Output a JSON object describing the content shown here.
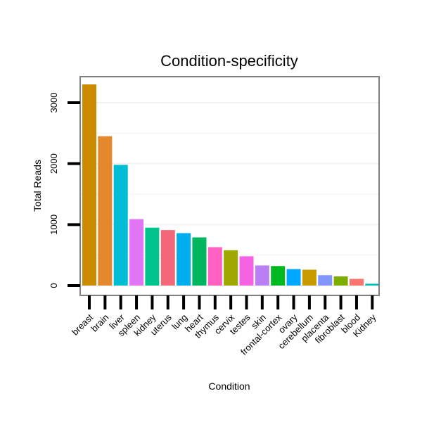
{
  "chart_data": {
    "type": "bar",
    "title": "Condition-specificity",
    "xlabel": "Condition",
    "ylabel": "Total Reads",
    "categories": [
      "breast",
      "brain",
      "liver",
      "spleen",
      "kidney",
      "uterus",
      "lung",
      "heart",
      "thymus",
      "cervix",
      "testes",
      "skin",
      "frontal-cortex",
      "ovary",
      "cerebellum",
      "placenta",
      "fibroblast",
      "blood",
      "Kidney"
    ],
    "values": [
      3300,
      2450,
      1980,
      1090,
      950,
      910,
      860,
      790,
      630,
      580,
      480,
      330,
      320,
      270,
      260,
      170,
      150,
      110,
      30
    ],
    "colors": [
      "#CC8A00",
      "#E5872B",
      "#00BCD4",
      "#E076F5",
      "#00C48C",
      "#F2677A",
      "#00ADEF",
      "#00B55F",
      "#FF61C3",
      "#9EA800",
      "#F563E3",
      "#BB7FF5",
      "#00B81F",
      "#00A9FF",
      "#C99A00",
      "#8395FF",
      "#7CAE00",
      "#F8766D",
      "#00C0AF"
    ],
    "yticks": [
      0,
      1000,
      2000,
      3000
    ],
    "ylim": [
      0,
      3450
    ],
    "grid": true,
    "legend": "none"
  }
}
